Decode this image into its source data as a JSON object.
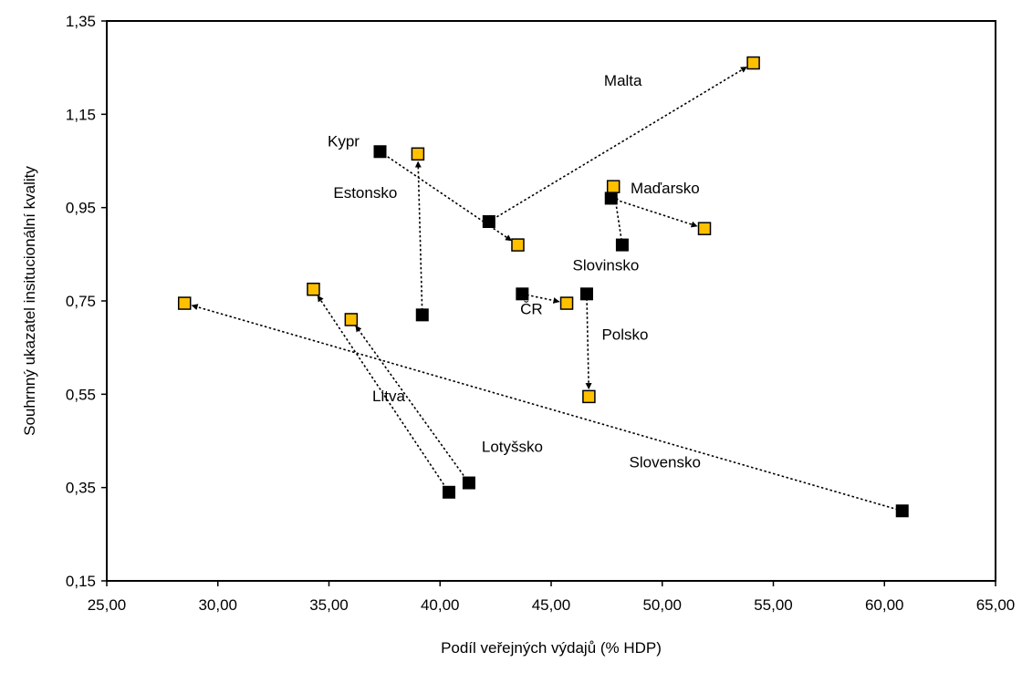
{
  "chart_data": {
    "type": "scatter",
    "title": "",
    "xlabel": "Podíl veřejných výdajů (% HDP)",
    "ylabel": "Souhrnný ukazatel insitucionální kvality",
    "xlim": [
      25,
      65
    ],
    "ylim": [
      0.15,
      1.35
    ],
    "x_ticks": [
      "25,00",
      "30,00",
      "35,00",
      "40,00",
      "45,00",
      "50,00",
      "55,00",
      "60,00",
      "65,00"
    ],
    "y_ticks": [
      "0,15",
      "0,35",
      "0,55",
      "0,75",
      "0,95",
      "1,15",
      "1,35"
    ],
    "grid": false,
    "legend": "none",
    "colors": {
      "start_marker": "#000000",
      "end_marker": "#ffc000",
      "end_marker_border": "#000000",
      "arrow": "#000000"
    },
    "series": [
      {
        "label": "Malta",
        "start": [
          42.2,
          0.92
        ],
        "end": [
          54.1,
          1.26
        ]
      },
      {
        "label": "Kypr",
        "start": [
          37.3,
          1.07
        ],
        "end": [
          43.5,
          0.87
        ]
      },
      {
        "label": "Estonsko",
        "start": [
          39.2,
          0.72
        ],
        "end": [
          39.0,
          1.065
        ]
      },
      {
        "label": "Maďarsko",
        "start": [
          47.7,
          0.97
        ],
        "end": [
          51.9,
          0.905
        ]
      },
      {
        "label": "Slovinsko",
        "start": [
          48.2,
          0.87
        ],
        "end": [
          47.8,
          0.995
        ]
      },
      {
        "label": "ČR",
        "start": [
          43.7,
          0.765
        ],
        "end": [
          45.7,
          0.745
        ]
      },
      {
        "label": "Polsko",
        "start": [
          46.6,
          0.765
        ],
        "end": [
          46.7,
          0.545
        ]
      },
      {
        "label": "Litva",
        "start": [
          40.4,
          0.34
        ],
        "end": [
          34.3,
          0.775
        ]
      },
      {
        "label": "Lotyšsko",
        "start": [
          41.3,
          0.36
        ],
        "end": [
          36.0,
          0.71
        ]
      },
      {
        "label": "Slovensko",
        "start": [
          60.8,
          0.3
        ],
        "end": [
          28.5,
          0.745
        ]
      }
    ]
  }
}
